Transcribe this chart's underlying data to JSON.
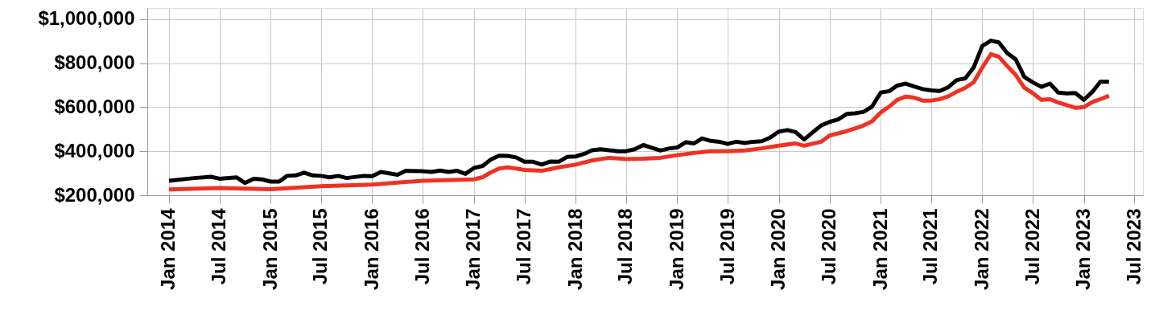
{
  "chart_data": {
    "type": "line",
    "xlim": [
      "2013-10-15",
      "2023-08-01"
    ],
    "ylim": [
      200000,
      1050000
    ],
    "xticks": [
      {
        "value": "2014-01",
        "label": "Jan 2014"
      },
      {
        "value": "2014-07",
        "label": "Jul 2014"
      },
      {
        "value": "2015-01",
        "label": "Jan 2015"
      },
      {
        "value": "2015-07",
        "label": "Jul 2015"
      },
      {
        "value": "2016-01",
        "label": "Jan 2016"
      },
      {
        "value": "2016-07",
        "label": "Jul 2016"
      },
      {
        "value": "2017-01",
        "label": "Jan 2017"
      },
      {
        "value": "2017-07",
        "label": "Jul 2017"
      },
      {
        "value": "2018-01",
        "label": "Jan 2018"
      },
      {
        "value": "2018-07",
        "label": "Jul 2018"
      },
      {
        "value": "2019-01",
        "label": "Jan 2019"
      },
      {
        "value": "2019-07",
        "label": "Jul 2019"
      },
      {
        "value": "2020-01",
        "label": "Jan 2020"
      },
      {
        "value": "2020-07",
        "label": "Jul 2020"
      },
      {
        "value": "2021-01",
        "label": "Jan 2021"
      },
      {
        "value": "2021-07",
        "label": "Jul 2021"
      },
      {
        "value": "2022-01",
        "label": "Jan 2022"
      },
      {
        "value": "2022-07",
        "label": "Jul 2022"
      },
      {
        "value": "2023-01",
        "label": "Jan 2023"
      },
      {
        "value": "2023-07",
        "label": "Jul 2023"
      }
    ],
    "yticks": [
      {
        "value": 200000,
        "label": "$200,000"
      },
      {
        "value": 400000,
        "label": "$400,000"
      },
      {
        "value": 600000,
        "label": "$600,000"
      },
      {
        "value": 800000,
        "label": "$800,000"
      },
      {
        "value": 1000000,
        "label": "$1,000,000"
      }
    ],
    "grid": true,
    "marker": "none",
    "line_style": "solid",
    "series": [
      {
        "color": "#000000",
        "x": [
          "2014-01",
          "2014-04",
          "2014-06",
          "2014-07",
          "2014-09",
          "2014-10",
          "2014-11",
          "2014-12",
          "2015-01",
          "2015-02",
          "2015-03",
          "2015-04",
          "2015-05",
          "2015-06",
          "2015-07",
          "2015-08",
          "2015-09",
          "2015-10",
          "2015-12",
          "2016-01",
          "2016-02",
          "2016-04",
          "2016-05",
          "2016-07",
          "2016-08",
          "2016-09",
          "2016-10",
          "2016-11",
          "2016-12",
          "2017-01",
          "2017-02",
          "2017-03",
          "2017-04",
          "2017-05",
          "2017-06",
          "2017-07",
          "2017-08",
          "2017-09",
          "2017-10",
          "2017-11",
          "2017-12",
          "2018-01",
          "2018-02",
          "2018-03",
          "2018-04",
          "2018-05",
          "2018-06",
          "2018-07",
          "2018-08",
          "2018-09",
          "2018-10",
          "2018-11",
          "2018-12",
          "2019-01",
          "2019-02",
          "2019-03",
          "2019-04",
          "2019-05",
          "2019-06",
          "2019-07",
          "2019-08",
          "2019-09",
          "2019-10",
          "2019-11",
          "2019-12",
          "2020-01",
          "2020-02",
          "2020-03",
          "2020-04",
          "2020-05",
          "2020-06",
          "2020-07",
          "2020-08",
          "2020-09",
          "2020-10",
          "2020-11",
          "2020-12",
          "2021-01",
          "2021-02",
          "2021-03",
          "2021-04",
          "2021-05",
          "2021-06",
          "2021-07",
          "2021-08",
          "2021-09",
          "2021-10",
          "2021-11",
          "2021-12",
          "2022-01",
          "2022-02",
          "2022-03",
          "2022-04",
          "2022-05",
          "2022-06",
          "2022-07",
          "2022-08",
          "2022-09",
          "2022-10",
          "2022-11",
          "2022-12",
          "2023-01",
          "2023-02",
          "2023-03",
          "2023-04"
        ],
        "values": [
          266000,
          278000,
          284000,
          275000,
          281000,
          256000,
          275000,
          272000,
          262000,
          262000,
          288000,
          290000,
          303000,
          290000,
          288000,
          281000,
          288000,
          278000,
          288000,
          287000,
          306000,
          293000,
          311000,
          309000,
          306000,
          312000,
          306000,
          311000,
          297000,
          324000,
          333000,
          361000,
          380000,
          379000,
          372000,
          352000,
          352000,
          339000,
          353000,
          352000,
          374000,
          376000,
          388000,
          404000,
          409000,
          404000,
          400000,
          400000,
          409000,
          428000,
          416000,
          403000,
          412000,
          417000,
          441000,
          435000,
          458000,
          447000,
          443000,
          433000,
          443000,
          437000,
          443000,
          445000,
          462000,
          489000,
          496000,
          487000,
          453000,
          485000,
          517000,
          533000,
          544000,
          569000,
          572000,
          579000,
          603000,
          666000,
          673000,
          698000,
          707000,
          694000,
          682000,
          676000,
          673000,
          691000,
          723000,
          731000,
          780000,
          878000,
          902000,
          894000,
          845000,
          817000,
          737000,
          713000,
          692000,
          707000,
          666000,
          662000,
          664000,
          633000,
          670000,
          715000,
          715000
        ]
      },
      {
        "color": "#ee3224",
        "x": [
          "2014-01",
          "2014-07",
          "2015-01",
          "2015-07",
          "2016-01",
          "2016-07",
          "2017-01",
          "2017-02",
          "2017-03",
          "2017-04",
          "2017-05",
          "2017-06",
          "2017-07",
          "2017-09",
          "2017-11",
          "2018-01",
          "2018-03",
          "2018-05",
          "2018-07",
          "2018-09",
          "2018-11",
          "2019-01",
          "2019-03",
          "2019-05",
          "2019-07",
          "2019-09",
          "2019-11",
          "2020-01",
          "2020-03",
          "2020-04",
          "2020-06",
          "2020-07",
          "2020-08",
          "2020-09",
          "2020-10",
          "2020-11",
          "2020-12",
          "2021-01",
          "2021-02",
          "2021-03",
          "2021-04",
          "2021-05",
          "2021-06",
          "2021-07",
          "2021-08",
          "2021-09",
          "2021-10",
          "2021-11",
          "2021-12",
          "2022-01",
          "2022-02",
          "2022-03",
          "2022-04",
          "2022-05",
          "2022-06",
          "2022-07",
          "2022-08",
          "2022-09",
          "2022-10",
          "2022-11",
          "2022-12",
          "2023-01",
          "2023-02",
          "2023-03",
          "2023-04"
        ],
        "values": [
          226000,
          233000,
          227000,
          241000,
          248000,
          266000,
          272000,
          282000,
          303000,
          321000,
          327000,
          321000,
          315000,
          311000,
          327000,
          339000,
          358000,
          370000,
          364000,
          366000,
          370000,
          382000,
          392000,
          400000,
          400000,
          403000,
          413000,
          425000,
          435000,
          425000,
          443000,
          471000,
          481000,
          491000,
          503000,
          517000,
          536000,
          576000,
          603000,
          633000,
          648000,
          643000,
          630000,
          630000,
          636000,
          649000,
          670000,
          688000,
          713000,
          780000,
          841000,
          829000,
          786000,
          746000,
          688000,
          664000,
          633000,
          636000,
          621000,
          609000,
          597000,
          600000,
          624000,
          636000,
          652000
        ]
      }
    ]
  }
}
